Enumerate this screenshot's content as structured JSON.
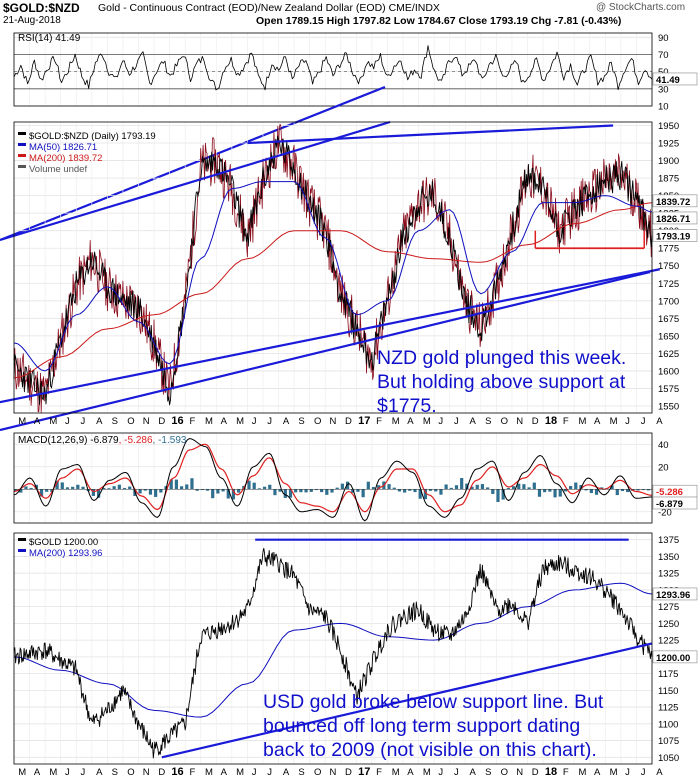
{
  "header": {
    "symbol": "$GOLD:$NZD",
    "description": "Gold - Continuous Contract (EOD)/New Zealand Dollar (EOD) CME/INDX",
    "date": "21-Aug-2018",
    "ohlc": "Open 1789.15  High 1797.82  Low 1784.67  Close 1793.19  Chg -7.81 (-0.43%)",
    "watermark": "@ StockCharts.com"
  },
  "colors": {
    "price": "#000000",
    "ma50": "#1010c0",
    "ma200": "#cc1a1a",
    "trend": "#1a1ad9",
    "support": "#e02020",
    "macd_hist": "#2f6f8f",
    "text_annotation": "#1010cc"
  },
  "chart_data": [
    {
      "type": "line",
      "panel": "rsi",
      "title": "RSI(14) 41.49",
      "last_value": "41.49",
      "ylim": [
        10,
        95
      ],
      "y_ticks": [
        "90",
        "70",
        "50",
        "30",
        "10"
      ],
      "reference_lines": [
        70,
        30
      ],
      "series": [
        {
          "name": "RSI(14)",
          "values": [
            44,
            58,
            35,
            62,
            40,
            55,
            66,
            38,
            52,
            70,
            45,
            33,
            60,
            72,
            50,
            40,
            63,
            48,
            58,
            69,
            36,
            51,
            62,
            45,
            57,
            71,
            43,
            60,
            66,
            39,
            30,
            55,
            64,
            47,
            58,
            72,
            44,
            33,
            61,
            52,
            67,
            40,
            57,
            63,
            35,
            50,
            66,
            45,
            59,
            70,
            48,
            38,
            62,
            55,
            68,
            42,
            57,
            64,
            41,
            53,
            46,
            80,
            49,
            36,
            60,
            70,
            47,
            55,
            64,
            38,
            58,
            67,
            44,
            52,
            61,
            36,
            49,
            63,
            40,
            55,
            72,
            45,
            58,
            35,
            52,
            66,
            39,
            44,
            60,
            34,
            54,
            65,
            39,
            55,
            41
          ]
        }
      ]
    },
    {
      "type": "line",
      "panel": "price",
      "title": "$GOLD:$NZD (Daily) 1793.19",
      "legend": [
        "$GOLD:$NZD (Daily) 1793.19",
        "MA(50) 1826.71",
        "MA(200) 1839.72",
        "Volume undef"
      ],
      "ylim": [
        1540,
        1955
      ],
      "y_ticks": [
        "1950",
        "1925",
        "1900",
        "1875",
        "1850",
        "1825",
        "1800",
        "1775",
        "1750",
        "1725",
        "1700",
        "1675",
        "1650",
        "1625",
        "1600",
        "1575",
        "1550"
      ],
      "x_ticks": [
        "M",
        "A",
        "M",
        "J",
        "J",
        "A",
        "S",
        "O",
        "N",
        "D",
        "16",
        "F",
        "M",
        "A",
        "M",
        "J",
        "J",
        "A",
        "S",
        "O",
        "N",
        "D",
        "17",
        "F",
        "M",
        "A",
        "M",
        "J",
        "J",
        "A",
        "S",
        "O",
        "N",
        "D",
        "18",
        "F",
        "M",
        "A",
        "M",
        "J",
        "J",
        "A"
      ],
      "labels_right": [
        "1839.72",
        "1826.71",
        "1793.19"
      ],
      "series": [
        {
          "name": "$GOLD:$NZD (Daily)",
          "x": [
            0,
            2,
            3,
            4,
            5,
            6,
            7,
            8,
            9,
            10,
            11,
            12,
            13,
            14,
            15,
            16,
            17,
            18,
            19,
            20,
            21,
            22,
            23,
            24,
            25,
            26,
            27,
            28,
            29,
            30,
            31,
            32,
            33,
            34,
            35,
            36,
            37,
            38,
            39,
            40,
            41
          ],
          "values": [
            1605,
            1565,
            1645,
            1720,
            1760,
            1720,
            1700,
            1690,
            1640,
            1570,
            1700,
            1890,
            1900,
            1860,
            1790,
            1870,
            1925,
            1890,
            1840,
            1800,
            1710,
            1660,
            1615,
            1700,
            1790,
            1840,
            1850,
            1790,
            1700,
            1660,
            1720,
            1800,
            1880,
            1860,
            1800,
            1830,
            1850,
            1870,
            1880,
            1845,
            1793.19
          ]
        },
        {
          "name": "MA(50)",
          "x": [
            0,
            2,
            4,
            6,
            8,
            10,
            12,
            14,
            16,
            18,
            20,
            22,
            24,
            26,
            28,
            30,
            32,
            34,
            36,
            38,
            40,
            41
          ],
          "values": [
            1640,
            1600,
            1680,
            1720,
            1670,
            1610,
            1760,
            1860,
            1870,
            1870,
            1790,
            1680,
            1700,
            1800,
            1830,
            1710,
            1770,
            1840,
            1840,
            1850,
            1835,
            1826.71
          ]
        },
        {
          "name": "MA(200)",
          "x": [
            0,
            3,
            6,
            9,
            12,
            15,
            18,
            21,
            24,
            27,
            30,
            33,
            36,
            39,
            41
          ],
          "values": [
            1590,
            1620,
            1660,
            1680,
            1710,
            1760,
            1800,
            1800,
            1770,
            1760,
            1755,
            1780,
            1810,
            1830,
            1839.72
          ]
        }
      ],
      "trendlines": [
        {
          "name": "lower-channel",
          "from": [
            -1,
            1555
          ],
          "to": [
            41.5,
            1745
          ]
        },
        {
          "name": "upper-channel",
          "from": [
            15,
            1925
          ],
          "to": [
            38.5,
            1950
          ]
        },
        {
          "name": "support-1775",
          "from": [
            33.5,
            1775
          ],
          "to": [
            40.5,
            1775
          ]
        }
      ]
    },
    {
      "type": "line",
      "panel": "macd",
      "title": "MACD(12,26,9) -6.879, -5.286, -1.593",
      "legend": [
        "MACD(12,26,9) -6.879",
        "-5.286",
        "-1.593"
      ],
      "ylim": [
        -30,
        50
      ],
      "y_ticks": [
        "40",
        "20",
        "0",
        "-20"
      ],
      "labels_right": [
        "-5.286",
        "-6.879"
      ],
      "series": [
        {
          "name": "MACD",
          "values": [
            -5,
            10,
            -15,
            18,
            22,
            -10,
            8,
            15,
            -12,
            -25,
            20,
            45,
            38,
            10,
            -15,
            20,
            32,
            -5,
            -20,
            -18,
            -25,
            5,
            -28,
            10,
            25,
            15,
            -15,
            -25,
            -8,
            18,
            25,
            -10,
            15,
            30,
            5,
            -12,
            10,
            -5,
            12,
            -8,
            -6.879
          ]
        },
        {
          "name": "Signal",
          "values": [
            -2,
            5,
            -8,
            10,
            18,
            -2,
            5,
            10,
            -6,
            -18,
            10,
            35,
            40,
            18,
            -5,
            12,
            28,
            5,
            -12,
            -15,
            -20,
            -2,
            -20,
            2,
            18,
            18,
            -5,
            -20,
            -14,
            8,
            20,
            2,
            10,
            22,
            12,
            -4,
            4,
            0,
            8,
            -2,
            -5.286
          ]
        },
        {
          "name": "Histogram",
          "values": [
            -3,
            5,
            -7,
            8,
            4,
            -8,
            3,
            5,
            -6,
            -7,
            10,
            10,
            -2,
            -8,
            -10,
            8,
            4,
            -10,
            -8,
            -3,
            -5,
            7,
            -8,
            8,
            7,
            -3,
            -10,
            -5,
            6,
            10,
            5,
            -12,
            5,
            8,
            -7,
            -8,
            6,
            -5,
            4,
            -6,
            -1.593
          ]
        }
      ]
    },
    {
      "type": "line",
      "panel": "usd-gold",
      "title": "$GOLD 1200.00",
      "legend": [
        "$GOLD 1200.00",
        "MA(200) 1293.96"
      ],
      "ylim": [
        1040,
        1385
      ],
      "y_ticks": [
        "1375",
        "1350",
        "1325",
        "1300",
        "1275",
        "1250",
        "1225",
        "1200",
        "1175",
        "1150",
        "1125",
        "1100",
        "1075",
        "1050"
      ],
      "x_ticks": [
        "M",
        "A",
        "M",
        "J",
        "J",
        "A",
        "S",
        "O",
        "N",
        "D",
        "16",
        "F",
        "M",
        "A",
        "M",
        "J",
        "J",
        "A",
        "S",
        "O",
        "N",
        "D",
        "17",
        "F",
        "M",
        "A",
        "M",
        "J",
        "J",
        "A",
        "S",
        "O",
        "N",
        "D",
        "18",
        "F",
        "M",
        "A",
        "M",
        "J",
        "J",
        "A"
      ],
      "labels_right": [
        "1293.96",
        "1200.00"
      ],
      "series": [
        {
          "name": "$GOLD",
          "x": [
            0,
            2,
            3,
            4,
            5,
            6,
            7,
            8,
            9,
            10,
            11,
            12,
            13,
            14,
            15,
            16,
            17,
            18,
            19,
            20,
            21,
            22,
            23,
            24,
            25,
            26,
            27,
            28,
            29,
            30,
            31,
            32,
            33,
            34,
            35,
            36,
            37,
            38,
            39,
            40,
            41
          ],
          "values": [
            1200,
            1210,
            1195,
            1180,
            1100,
            1120,
            1150,
            1100,
            1060,
            1080,
            1100,
            1230,
            1240,
            1250,
            1270,
            1350,
            1340,
            1320,
            1270,
            1260,
            1210,
            1140,
            1190,
            1240,
            1260,
            1270,
            1240,
            1230,
            1260,
            1330,
            1270,
            1280,
            1250,
            1330,
            1340,
            1330,
            1320,
            1300,
            1270,
            1230,
            1200
          ]
        },
        {
          "name": "MA(200)",
          "x": [
            0,
            3,
            6,
            9,
            12,
            15,
            18,
            21,
            24,
            27,
            30,
            33,
            36,
            39,
            41
          ],
          "values": [
            1200,
            1180,
            1160,
            1120,
            1110,
            1160,
            1240,
            1250,
            1230,
            1225,
            1250,
            1275,
            1300,
            1310,
            1293.96
          ]
        }
      ],
      "trendlines": [
        {
          "name": "resistance",
          "from": [
            15.5,
            1375
          ],
          "to": [
            39.5,
            1375
          ]
        },
        {
          "name": "support",
          "from": [
            9.5,
            1050
          ],
          "to": [
            41,
            1220
          ]
        }
      ]
    }
  ],
  "annotations": {
    "nzd_note": [
      "NZD gold plunged this week.",
      "But holding above support at",
      "$1775."
    ],
    "usd_note": [
      "USD gold broke below support line. But",
      "bounced off long term support dating",
      "back to 2009 (not visible on this chart)."
    ]
  }
}
